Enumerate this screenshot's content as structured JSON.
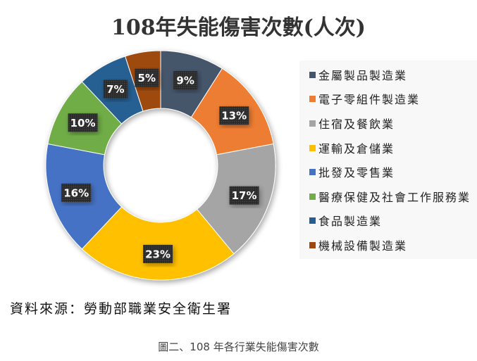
{
  "title": "108年失能傷害次數(人次)",
  "source": "資料來源：勞動部職業安全衛生署",
  "caption": "圖二、108 年各行業失能傷害次數",
  "legend": {
    "items": [
      {
        "label": "金屬製品製造業",
        "color": "#44546a"
      },
      {
        "label": "電子零組件製造業",
        "color": "#ed7d31"
      },
      {
        "label": "住宿及餐飲業",
        "color": "#a5a5a5"
      },
      {
        "label": "運輸及倉儲業",
        "color": "#ffc000"
      },
      {
        "label": "批發及零售業",
        "color": "#4472c4"
      },
      {
        "label": "醫療保健及社會工作服務業",
        "color": "#70ad47"
      },
      {
        "label": "食品製造業",
        "color": "#255e91"
      },
      {
        "label": "機械設備製造業",
        "color": "#9e480e"
      }
    ]
  },
  "chart_data": {
    "type": "pie",
    "subtype": "donut",
    "title": "108年失能傷害次數(人次)",
    "categories": [
      "金屬製品製造業",
      "電子零組件製造業",
      "住宿及餐飲業",
      "運輸及倉儲業",
      "批發及零售業",
      "醫療保健及社會工作服務業",
      "食品製造業",
      "機械設備製造業"
    ],
    "values": [
      9,
      13,
      17,
      23,
      16,
      10,
      7,
      5
    ],
    "unit": "%",
    "labels": [
      "9%",
      "13%",
      "17%",
      "23%",
      "16%",
      "10%",
      "7%",
      "5%"
    ],
    "colors": [
      "#44546a",
      "#ed7d31",
      "#a5a5a5",
      "#ffc000",
      "#4472c4",
      "#70ad47",
      "#255e91",
      "#9e480e"
    ],
    "legend_position": "right"
  }
}
